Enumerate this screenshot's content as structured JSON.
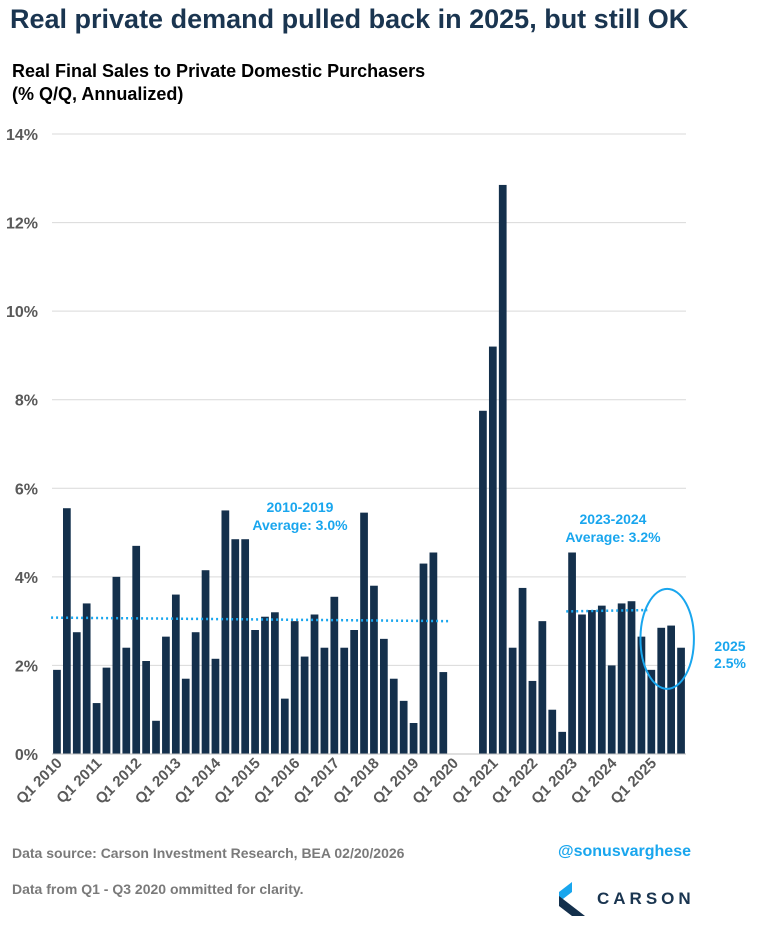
{
  "headline": "Real private demand pulled back in 2025, but still OK",
  "chart_data": {
    "type": "bar",
    "title": "Real Final Sales to Private Domestic Purchasers",
    "subtitle": "(% Q/Q, Annualized)",
    "xlabel": "",
    "ylabel": "",
    "ylim": [
      0,
      14
    ],
    "yticks": [
      0,
      2,
      4,
      6,
      8,
      10,
      12,
      14
    ],
    "ytick_labels": [
      "0%",
      "2%",
      "4%",
      "6%",
      "8%",
      "10%",
      "12%",
      "14%"
    ],
    "xtick_labels": [
      "Q1 2010",
      "Q1 2011",
      "Q1 2012",
      "Q1 2013",
      "Q1 2014",
      "Q1 2015",
      "Q1 2016",
      "Q1 2017",
      "Q1 2018",
      "Q1 2019",
      "Q1 2020",
      "Q1 2021",
      "Q1 2022",
      "Q1 2023",
      "Q1 2024",
      "Q1 2025"
    ],
    "grid": true,
    "color": "#14304c",
    "series": [
      {
        "name": "Real Final Sales to Private Domestic Purchasers",
        "values": [
          1.9,
          5.55,
          2.75,
          3.4,
          1.15,
          1.95,
          4.0,
          2.4,
          4.7,
          2.1,
          0.75,
          2.65,
          3.6,
          1.7,
          2.75,
          4.15,
          2.15,
          5.5,
          4.85,
          4.85,
          2.8,
          3.1,
          3.2,
          1.25,
          3.0,
          2.2,
          3.15,
          2.4,
          3.55,
          2.4,
          2.8,
          5.45,
          3.8,
          2.6,
          1.7,
          1.2,
          0.7,
          4.3,
          4.55,
          1.85,
          null,
          null,
          null,
          7.75,
          9.2,
          12.85,
          2.4,
          3.75,
          1.65,
          3.0,
          1.0,
          0.5,
          4.55,
          3.15,
          3.25,
          3.35,
          2.0,
          3.4,
          3.45,
          2.65,
          1.9,
          2.85,
          2.9,
          2.4
        ]
      }
    ],
    "averages": [
      {
        "label_line1": "2010-2019",
        "label_line2": "Average: 3.0%",
        "start_index": 0,
        "end_index": 39,
        "y_start": 3.08,
        "y_end": 3.0
      },
      {
        "label_line1": "2023-2024",
        "label_line2": "Average: 3.2%",
        "start_index": 52,
        "end_index": 59,
        "y_start": 3.22,
        "y_end": 3.25
      }
    ],
    "highlight": {
      "line1": "2025",
      "line2": "2.5%",
      "start_index": 60,
      "end_index": 63
    }
  },
  "footer": {
    "source": "Data source: Carson Investment Research, BEA   02/20/2026",
    "note": "Data from Q1 - Q3 2020 ommitted for clarity.",
    "handle": "@sonusvarghese",
    "brand": "CARSON"
  },
  "colors": {
    "bar": "#14304c",
    "accent": "#19a6ee",
    "grid": "#d9d9d9",
    "headline": "#1a3550"
  }
}
